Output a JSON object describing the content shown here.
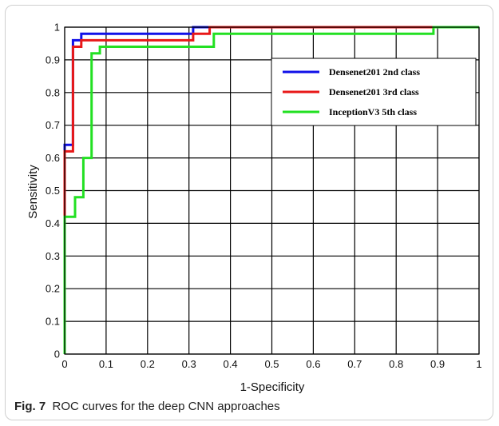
{
  "caption": {
    "label": "Fig. 7",
    "text": "ROC curves for the deep CNN approaches"
  },
  "chart_data": {
    "type": "line",
    "title": "",
    "xlabel": "1-Specificity",
    "ylabel": "Sensitivity",
    "xlim": [
      0,
      1
    ],
    "ylim": [
      0,
      1
    ],
    "x_ticks": [
      "0",
      "0.1",
      "0.2",
      "0.3",
      "0.4",
      "0.5",
      "0.6",
      "0.7",
      "0.8",
      "0.9",
      "1"
    ],
    "y_ticks": [
      "0",
      "0.1",
      "0.2",
      "0.3",
      "0.4",
      "0.5",
      "0.6",
      "0.7",
      "0.8",
      "0.9",
      "1"
    ],
    "grid": true,
    "legend_position": "top-right",
    "series": [
      {
        "name": "Densenet201 2nd class",
        "color": "#1010e8",
        "x": [
          0,
          0,
          0.02,
          0.02,
          0.04,
          0.04,
          0.31,
          0.31,
          1
        ],
        "y": [
          0,
          0.64,
          0.64,
          0.96,
          0.96,
          0.98,
          0.98,
          1,
          1
        ]
      },
      {
        "name": "Densenet201 3rd  class",
        "color": "#e81818",
        "x": [
          0,
          0,
          0.02,
          0.02,
          0.04,
          0.04,
          0.31,
          0.31,
          0.35,
          0.35,
          1
        ],
        "y": [
          0,
          0.62,
          0.62,
          0.94,
          0.94,
          0.96,
          0.96,
          0.98,
          0.98,
          1,
          1
        ]
      },
      {
        "name": "InceptionV3 5th class",
        "color": "#22e022",
        "x": [
          0,
          0,
          0.025,
          0.025,
          0.045,
          0.045,
          0.065,
          0.065,
          0.085,
          0.085,
          0.36,
          0.36,
          0.89,
          0.89,
          1
        ],
        "y": [
          0,
          0.42,
          0.42,
          0.48,
          0.48,
          0.6,
          0.6,
          0.92,
          0.92,
          0.94,
          0.94,
          0.98,
          0.98,
          1,
          1
        ]
      }
    ]
  }
}
